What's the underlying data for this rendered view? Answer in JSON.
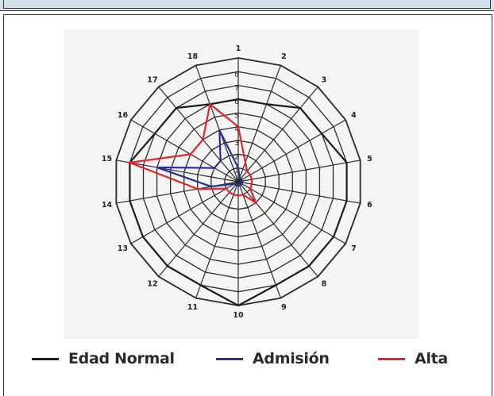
{
  "chart_data": {
    "type": "radar",
    "categories": [
      "1",
      "2",
      "3",
      "4",
      "5",
      "6",
      "7",
      "8",
      "9",
      "10",
      "11",
      "12",
      "13",
      "14",
      "15",
      "16",
      "17",
      "18"
    ],
    "rings": [
      "1",
      "2",
      "3",
      "4",
      "5",
      "6",
      "7",
      "8"
    ],
    "rmax": 9,
    "series": [
      {
        "name": "Edad Normal",
        "color": "#1a1a1a",
        "values": [
          6,
          6,
          7,
          7,
          8,
          8,
          8,
          8,
          8,
          9,
          8,
          8,
          8,
          8,
          8,
          7,
          7,
          6
        ]
      },
      {
        "name": "Admisión",
        "color": "#2b2f9a",
        "values": [
          1,
          0.3,
          0.3,
          0.3,
          0.3,
          0.3,
          0.3,
          0.3,
          0.3,
          0.3,
          0.3,
          0.3,
          0.3,
          2,
          6,
          2,
          2,
          4
        ]
      },
      {
        "name": "Alta",
        "color": "#e0262a",
        "values": [
          4,
          1.5,
          1,
          1,
          1,
          1,
          1,
          2,
          1,
          1,
          1,
          1,
          1,
          3,
          8,
          4,
          4,
          6
        ]
      }
    ],
    "legend_position": "bottom"
  },
  "colors": {
    "strip": "#d6e2ea",
    "grid": "#2a2a2a",
    "plot_bg": "#f4f4f2"
  }
}
